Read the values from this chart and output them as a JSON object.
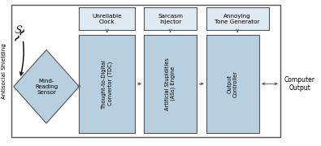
{
  "fig_width": 3.95,
  "fig_height": 1.8,
  "dpi": 100,
  "bg_color": "#ffffff",
  "box_fill": "#b8cfe0",
  "box_edge": "#555555",
  "small_box_fill": "#e0eaf2",
  "small_box_edge": "#555555",
  "arrow_color": "#555555",
  "antisocial_text": "Antisocial Shielding",
  "computer_output_text": "Computer\nOutput",
  "diamond_label": "Mind-\nReading\nSensor",
  "tdc_label": "Thought-to-Digital\nConvertor (TDC)",
  "asses_label": "Artificial Stupidities\n(ASs) Engine",
  "oc_label": "Output\nController",
  "clock_label": "Unreliable\nClock",
  "sarcasm_label": "Sarcasm\nInjector",
  "tone_label": "Annoying\nTone Generator",
  "font_size_rotated": 4.8,
  "font_size_small": 5.2,
  "font_size_outside": 5.5,
  "font_size_diamond": 5.0
}
